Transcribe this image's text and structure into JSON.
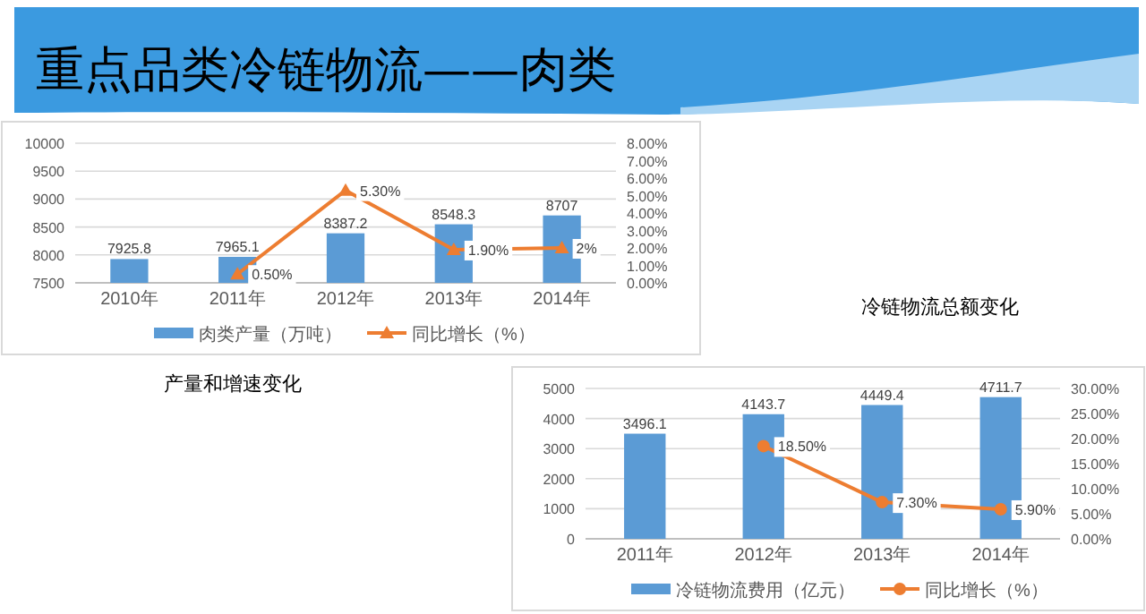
{
  "chart_data": [
    {
      "type": "bar",
      "title": "重点品类冷链物流——肉类",
      "categories": [
        "2010年",
        "2011年",
        "2012年",
        "2013年",
        "2014年"
      ],
      "series": [
        {
          "name": "肉类产量（万吨）",
          "color": "#5b9bd5",
          "values": [
            7925.8,
            7965.1,
            8387.2,
            8548.3,
            8707
          ],
          "data_labels": true
        },
        {
          "name": "同比增长（%）",
          "type": "line",
          "axis": "y2",
          "color": "#ed7d31",
          "marker": "triangle",
          "values": [
            null,
            0.5,
            5.3,
            1.9,
            2
          ],
          "value_labels": [
            null,
            "0.50%",
            "5.30%",
            "1.90%",
            "2%"
          ]
        }
      ],
      "ylim": [
        7500,
        10000
      ],
      "yticks": [
        7500,
        8000,
        8500,
        9000,
        9500,
        10000
      ],
      "y2lim": [
        0,
        8
      ],
      "y2ticks": [
        {
          "value": 0,
          "label": "0.00%"
        },
        {
          "value": 1,
          "label": "1.00%"
        },
        {
          "value": 2,
          "label": "2.00%"
        },
        {
          "value": 3,
          "label": "3.00%"
        },
        {
          "value": 4,
          "label": "4.00%"
        },
        {
          "value": 5,
          "label": "5.00%"
        },
        {
          "value": 6,
          "label": "6.00%"
        },
        {
          "value": 7,
          "label": "7.00%"
        },
        {
          "value": 8,
          "label": "8.00%"
        }
      ],
      "grid": "y",
      "legend": "bottom",
      "annotations": [
        "产量和增速变化"
      ]
    },
    {
      "type": "bar",
      "categories": [
        "2011年",
        "2012年",
        "2013年",
        "2014年"
      ],
      "series": [
        {
          "name": "冷链物流费用（亿元）",
          "color": "#5b9bd5",
          "values": [
            3496.1,
            4143.7,
            4449.4,
            4711.7
          ],
          "data_labels": true
        },
        {
          "name": "同比增长（%）",
          "type": "line",
          "axis": "y2",
          "color": "#ed7d31",
          "marker": "circle",
          "values": [
            null,
            18.5,
            7.3,
            5.9
          ],
          "value_labels": [
            null,
            "18.50%",
            "7.30%",
            "5.90%"
          ]
        }
      ],
      "ylim": [
        0,
        5000
      ],
      "yticks": [
        0,
        1000,
        2000,
        3000,
        4000,
        5000
      ],
      "y2lim": [
        0,
        30
      ],
      "y2ticks": [
        {
          "value": 0,
          "label": "0.00%"
        },
        {
          "value": 5,
          "label": "5.00%"
        },
        {
          "value": 10,
          "label": "10.00%"
        },
        {
          "value": 15,
          "label": "15.00%"
        },
        {
          "value": 20,
          "label": "20.00%"
        },
        {
          "value": 25,
          "label": "25.00%"
        },
        {
          "value": 30,
          "label": "30.00%"
        }
      ],
      "grid": "y",
      "legend": "bottom",
      "annotations": [
        "冷链物流总额变化"
      ]
    }
  ]
}
